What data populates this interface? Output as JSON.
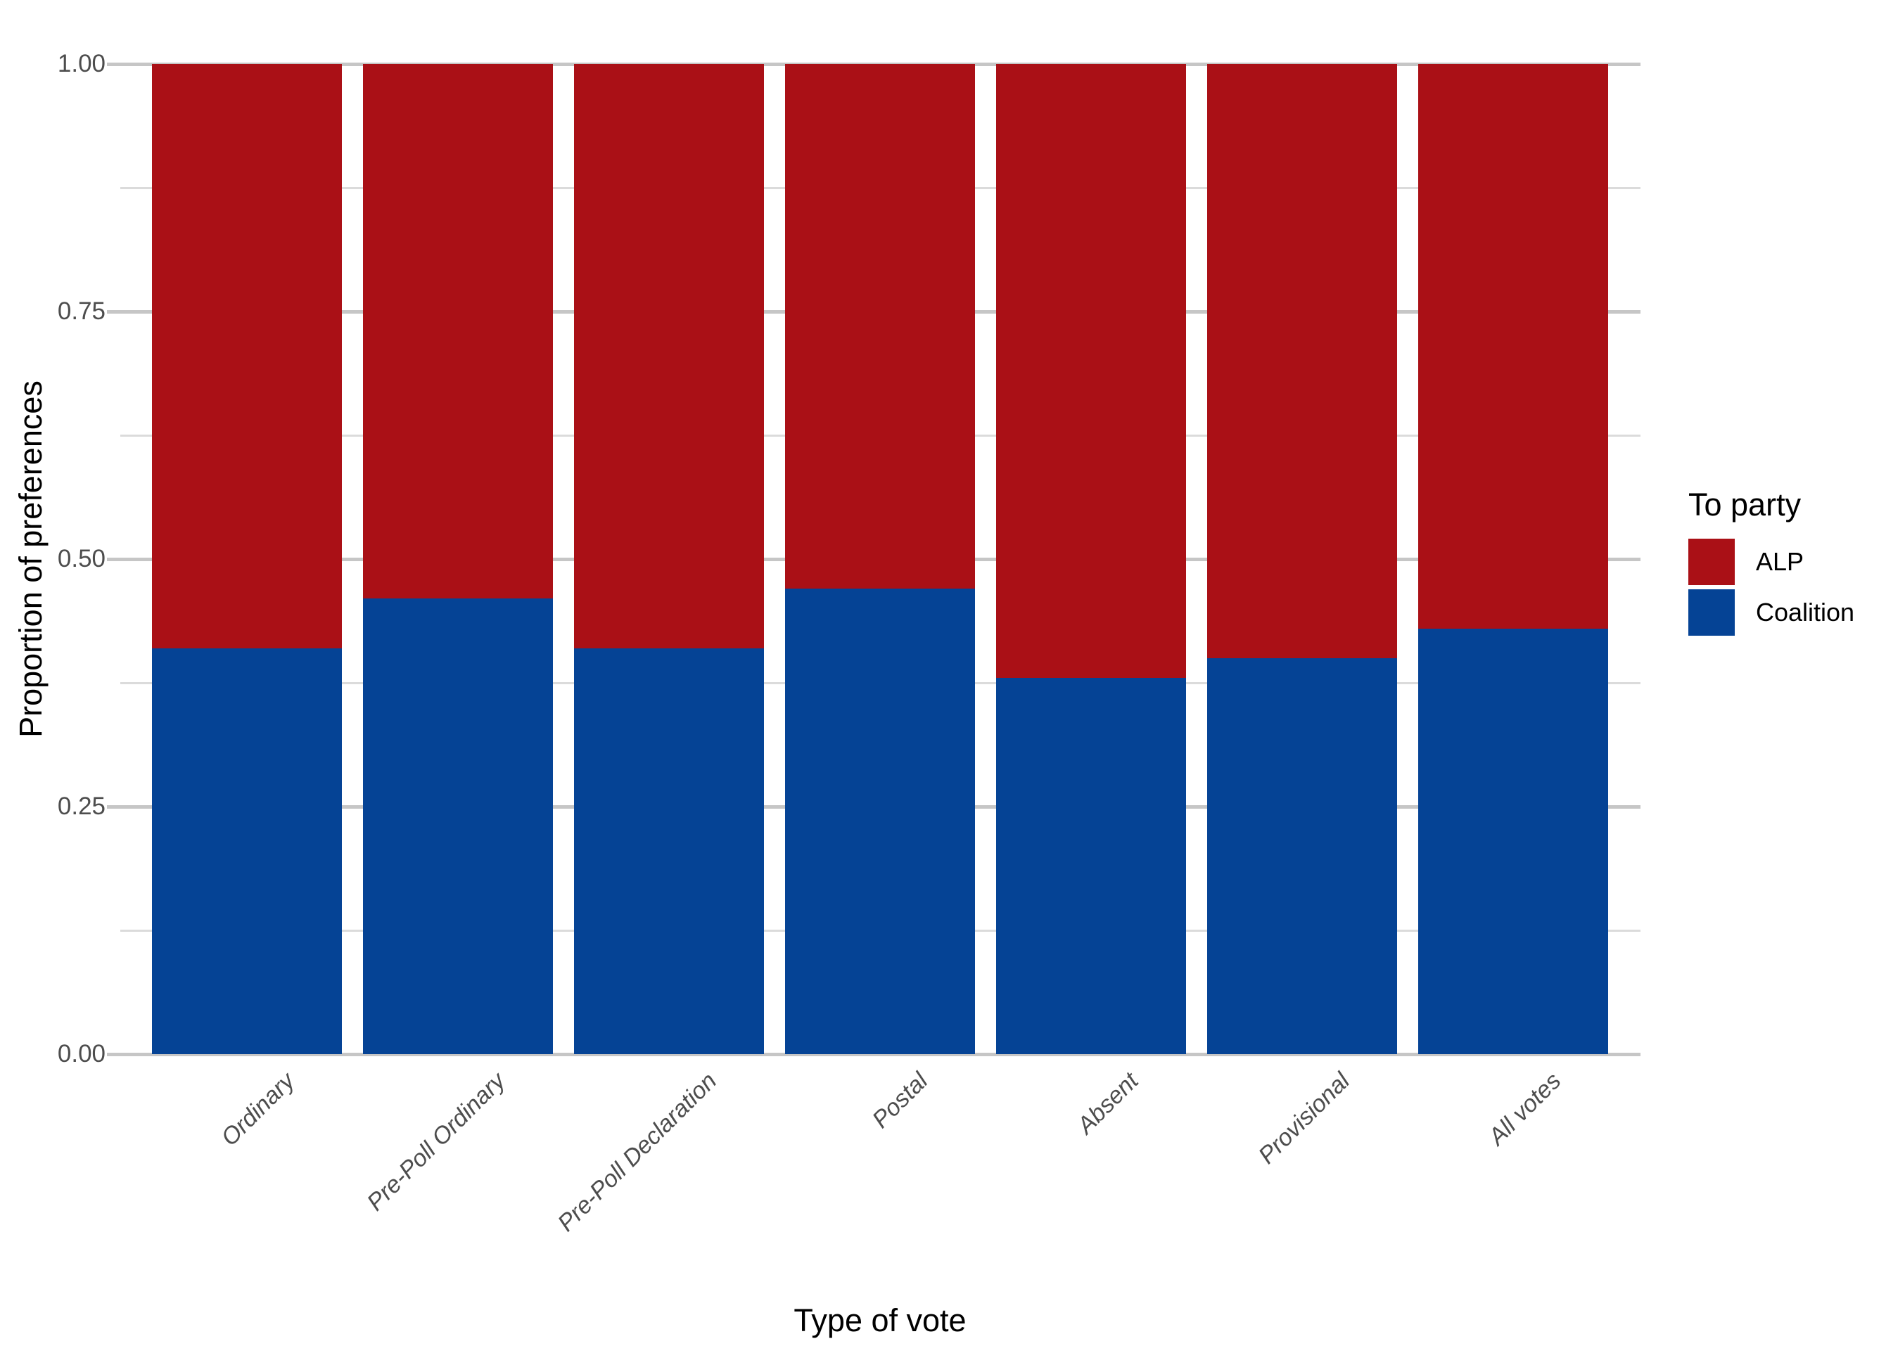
{
  "chart_data": {
    "type": "bar",
    "stacked": true,
    "orientation": "vertical",
    "title": "",
    "xlabel": "Type of vote",
    "ylabel": "Proportion of preferences",
    "legend_title": "To party",
    "legend_position": "right",
    "grid": true,
    "ylim": [
      0.0,
      1.0
    ],
    "categories": [
      "Ordinary",
      "Pre-Poll Ordinary",
      "Pre-Poll Declaration",
      "Postal",
      "Absent",
      "Provisional",
      "All votes"
    ],
    "series": [
      {
        "name": "ALP",
        "color": "#aa1016",
        "position": "top",
        "values": [
          0.59,
          0.54,
          0.59,
          0.53,
          0.62,
          0.6,
          0.57
        ]
      },
      {
        "name": "Coalition",
        "color": "#054395",
        "position": "bottom",
        "values": [
          0.41,
          0.46,
          0.41,
          0.47,
          0.38,
          0.4,
          0.43
        ]
      }
    ],
    "yticks": [
      {
        "value": 0.0,
        "label": "0.00"
      },
      {
        "value": 0.25,
        "label": "0.25"
      },
      {
        "value": 0.5,
        "label": "0.50"
      },
      {
        "value": 0.75,
        "label": "0.75"
      },
      {
        "value": 1.0,
        "label": "1.00"
      }
    ],
    "yticks_minor": [
      0.125,
      0.375,
      0.625,
      0.875
    ]
  }
}
